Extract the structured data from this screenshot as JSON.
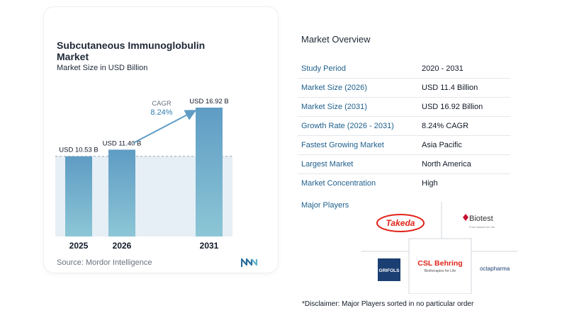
{
  "chart": {
    "title": "Subcutaneous Immunoglobulin Market",
    "subtitle": "Market Size in USD Billion",
    "source_label": "Source:",
    "source": "Mordor Intelligence",
    "cagr_label": "CAGR",
    "cagr_value": "8.24%"
  },
  "chart_data": {
    "type": "bar",
    "categories": [
      "2025",
      "2026",
      "2031"
    ],
    "values": [
      10.53,
      11.4,
      16.92
    ],
    "data_labels": [
      "USD 10.53 B",
      "USD 11.40 B",
      "USD 16.92 B"
    ],
    "title": "Subcutaneous Immunoglobulin Market",
    "subtitle": "Market Size in USD Billion",
    "ylabel": "",
    "xlabel": "",
    "ylim": [
      0,
      17
    ],
    "grid": false,
    "annotation": "CAGR 8.24%",
    "colors": {
      "bar_top": "#5f9cc4",
      "bar_bottom": "#8cc6d6",
      "reference_band": "#e6eff5",
      "arrow": "#5f9cc4"
    }
  },
  "overview": {
    "title": "Market Overview",
    "rows": [
      {
        "key": "Study Period",
        "value": "2020 - 2031"
      },
      {
        "key": "Market Size (2026)",
        "value": "USD 11.4 Billion"
      },
      {
        "key": "Market Size (2031)",
        "value": "USD 16.92 Billion"
      },
      {
        "key": "Growth Rate (2026 - 2031)",
        "value": "8.24% CAGR"
      },
      {
        "key": "Fastest Growing Market",
        "value": "Asia Pacific"
      },
      {
        "key": "Largest Market",
        "value": "North America"
      },
      {
        "key": "Market Concentration",
        "value": "High"
      }
    ]
  },
  "players": {
    "title": "Major Players",
    "list": [
      {
        "name": "Takeda",
        "color": "#e2231a"
      },
      {
        "name": "Biotest",
        "tagline": "From Nature for Life",
        "color": "#c8102e"
      },
      {
        "name": "GRIFOLS",
        "color": "#1b3f72"
      },
      {
        "name": "CSL Behring",
        "tagline": "Biotherapies for Life",
        "color": "#e2231a"
      },
      {
        "name": "octapharma",
        "color": "#1b3f72"
      }
    ]
  },
  "disclaimer": "*Disclaimer: Major Players sorted in no particular order"
}
